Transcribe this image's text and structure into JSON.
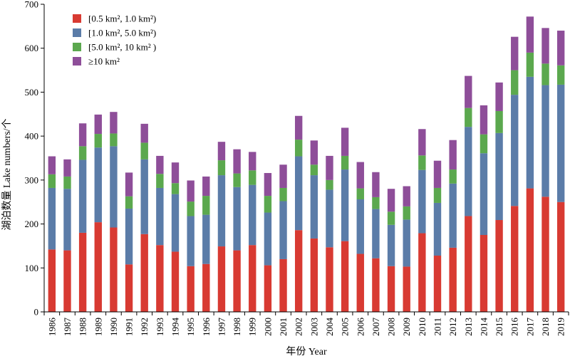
{
  "chart_data": {
    "type": "bar",
    "stacked": true,
    "xlabel": "年份 Year",
    "ylabel": "湖泊数量 Lake numbers/个",
    "ylim": [
      0,
      700
    ],
    "yticks": [
      0,
      100,
      200,
      300,
      400,
      500,
      600,
      700
    ],
    "grid": false,
    "legend_position": "top-left",
    "categories": [
      "1986",
      "1987",
      "1988",
      "1989",
      "1990",
      "1991",
      "1992",
      "1993",
      "1994",
      "1995",
      "1996",
      "1997",
      "1998",
      "1999",
      "2000",
      "2001",
      "2002",
      "2003",
      "2004",
      "2005",
      "2006",
      "2007",
      "2008",
      "2009",
      "2010",
      "2011",
      "2012",
      "2013",
      "2014",
      "2015",
      "2016",
      "2017",
      "2018",
      "2019"
    ],
    "series": [
      {
        "name": "[0.5 km², 1.0 km²)",
        "color": "#d83a32",
        "values": [
          142,
          140,
          180,
          204,
          192,
          108,
          177,
          152,
          137,
          104,
          109,
          149,
          140,
          152,
          106,
          120,
          186,
          167,
          147,
          161,
          132,
          122,
          104,
          103,
          179,
          128,
          146,
          218,
          175,
          209,
          241,
          281,
          262,
          250
        ]
      },
      {
        "name": "[1.0 km², 5.0 km²)",
        "color": "#5b7ca8",
        "values": [
          140,
          140,
          166,
          170,
          185,
          127,
          170,
          130,
          131,
          114,
          112,
          162,
          144,
          137,
          120,
          132,
          168,
          144,
          131,
          163,
          124,
          112,
          94,
          107,
          144,
          120,
          146,
          203,
          186,
          198,
          253,
          254,
          254,
          267
        ]
      },
      {
        "name": "[5.0 km², 10 km² )",
        "color": "#5ba84e",
        "values": [
          31,
          28,
          31,
          31,
          29,
          28,
          38,
          32,
          25,
          33,
          43,
          34,
          31,
          33,
          38,
          30,
          38,
          24,
          22,
          31,
          25,
          27,
          30,
          30,
          33,
          34,
          32,
          43,
          43,
          50,
          56,
          55,
          49,
          44
        ]
      },
      {
        "name": "≥10 km²",
        "color": "#8e4e99",
        "values": [
          41,
          39,
          52,
          44,
          49,
          54,
          43,
          41,
          47,
          48,
          44,
          42,
          55,
          42,
          52,
          53,
          54,
          55,
          55,
          64,
          60,
          57,
          52,
          46,
          60,
          62,
          67,
          73,
          66,
          65,
          76,
          82,
          81,
          79
        ]
      }
    ]
  }
}
